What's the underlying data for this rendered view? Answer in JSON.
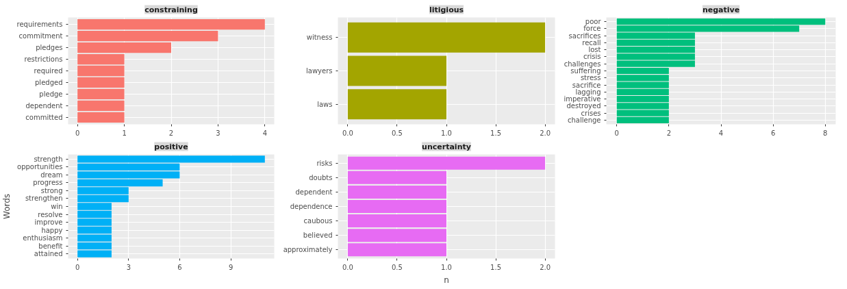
{
  "chart_data": [
    {
      "type": "bar",
      "orientation": "horizontal",
      "title": "constraining",
      "color": "#f8766d",
      "grid": true,
      "categories": [
        "requirements",
        "commitment",
        "pledges",
        "restrictions",
        "required",
        "pledged",
        "pledge",
        "dependent",
        "committed"
      ],
      "values": [
        4,
        3,
        2,
        1,
        1,
        1,
        1,
        1,
        1
      ],
      "xlim": [
        -0.2,
        4.2
      ],
      "xticks": [
        0,
        1,
        2,
        3,
        4
      ]
    },
    {
      "type": "bar",
      "orientation": "horizontal",
      "title": "litigious",
      "color": "#a3a500",
      "grid": true,
      "categories": [
        "witness",
        "lawyers",
        "laws"
      ],
      "values": [
        2,
        1,
        1
      ],
      "xlim": [
        -0.1,
        2.1
      ],
      "xticks": [
        {
          "value": 0,
          "label": "0.0"
        },
        {
          "value": 0.5,
          "label": "0.5"
        },
        {
          "value": 1,
          "label": "1.0"
        },
        {
          "value": 1.5,
          "label": "1.5"
        },
        {
          "value": 2,
          "label": "2.0"
        }
      ]
    },
    {
      "type": "bar",
      "orientation": "horizontal",
      "title": "negative",
      "color": "#00bf7d",
      "grid": true,
      "categories": [
        "poor",
        "force",
        "sacrifices",
        "recall",
        "lost",
        "crisis",
        "challenges",
        "suffering",
        "stress",
        "sacrifice",
        "lagging",
        "imperative",
        "destroyed",
        "crises",
        "challenge"
      ],
      "values": [
        8,
        7,
        3,
        3,
        3,
        3,
        3,
        2,
        2,
        2,
        2,
        2,
        2,
        2,
        2
      ],
      "xlim": [
        -0.4,
        8.4
      ],
      "xticks": [
        0,
        2,
        4,
        6,
        8
      ]
    },
    {
      "type": "bar",
      "orientation": "horizontal",
      "title": "positive",
      "ylabel": "Words",
      "color": "#00b0f6",
      "grid": true,
      "categories": [
        "strength",
        "opportunities",
        "dream",
        "progress",
        "strong",
        "strengthen",
        "win",
        "resolve",
        "improve",
        "happy",
        "enthusiasm",
        "benefit",
        "attained"
      ],
      "values": [
        11,
        6,
        6,
        5,
        3,
        3,
        2,
        2,
        2,
        2,
        2,
        2,
        2
      ],
      "xlim": [
        -0.55,
        11.55
      ],
      "xticks": [
        0,
        3,
        6,
        9
      ]
    },
    {
      "type": "bar",
      "orientation": "horizontal",
      "title": "uncertainty",
      "xlabel": "n",
      "color": "#e76bf3",
      "grid": true,
      "categories": [
        "risks",
        "doubts",
        "dependent",
        "dependence",
        "caubous",
        "believed",
        "approximately"
      ],
      "values": [
        2,
        1,
        1,
        1,
        1,
        1,
        1
      ],
      "xlim": [
        -0.1,
        2.1
      ],
      "xticks": [
        {
          "value": 0,
          "label": "0.0"
        },
        {
          "value": 0.5,
          "label": "0.5"
        },
        {
          "value": 1,
          "label": "1.0"
        },
        {
          "value": 1.5,
          "label": "1.5"
        },
        {
          "value": 2,
          "label": "2.0"
        }
      ]
    }
  ]
}
